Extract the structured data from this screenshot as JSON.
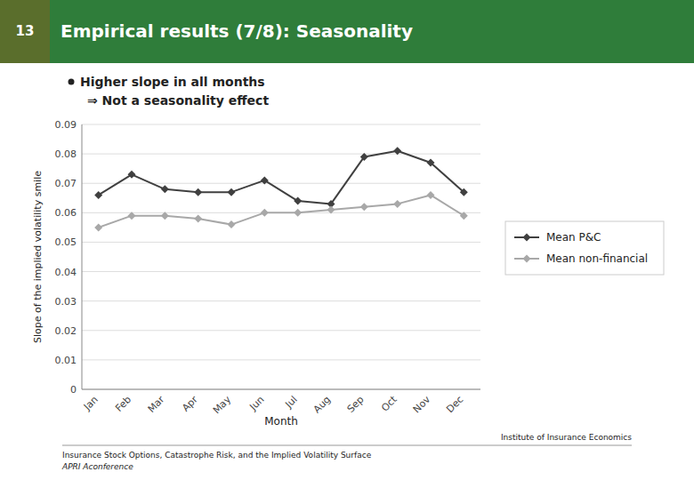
{
  "chart_data": {
    "type": "line",
    "title": "Empirical results (7/8): Seasonality",
    "annotations": [
      "13",
      "Higher slope in all months",
      "⇒ Not a seasonality effect",
      "Insurance Stock Options, Catastrophe Risk, and the Implied Volatility Surface",
      "APRI Aconference",
      "Institute of Insurance Economics"
    ],
    "categories": [
      "Jan",
      "Feb",
      "Mar",
      "Apr",
      "May",
      "Jun",
      "Jul",
      "Aug",
      "Sep",
      "Oct",
      "Nov",
      "Dec"
    ],
    "series": [
      {
        "name": "Mean P&C",
        "color": "#404040",
        "marker": "diamond",
        "values": [
          0.066,
          0.073,
          0.068,
          0.067,
          0.067,
          0.071,
          0.064,
          0.063,
          0.079,
          0.081,
          0.077,
          0.067
        ]
      },
      {
        "name": "Mean non-financial",
        "color": "#a8a8a8",
        "marker": "diamond",
        "values": [
          0.055,
          0.059,
          0.059,
          0.058,
          0.056,
          0.06,
          0.06,
          0.061,
          0.062,
          0.063,
          0.066,
          0.059
        ]
      }
    ],
    "xlabel": "Month",
    "ylabel": "Slope of the implied volatility smile",
    "ylim": [
      0,
      0.09
    ],
    "yticks": [
      0,
      0.01,
      0.02,
      0.03,
      0.04,
      0.05,
      0.06,
      0.07,
      0.08,
      0.09
    ],
    "grid": true,
    "legend": "right"
  }
}
